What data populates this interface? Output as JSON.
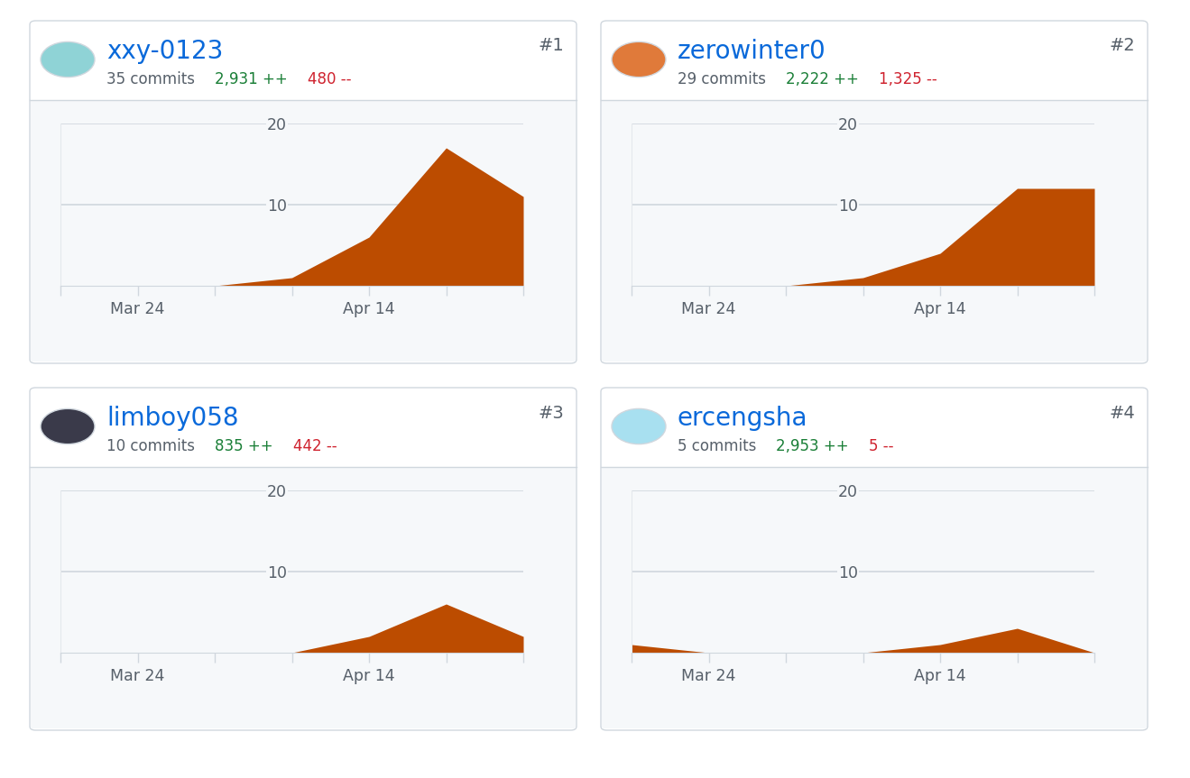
{
  "chart_data": [
    {
      "type": "area",
      "title": "xxy-0123",
      "annotations": [
        "35 commits",
        "2,931 ++",
        "480 --",
        "#1"
      ],
      "categories": [
        null,
        "Mar 24",
        null,
        null,
        "Apr 14",
        null,
        null
      ],
      "values": [
        0,
        0,
        0,
        1,
        6,
        17,
        11
      ],
      "color": "#bc4c00",
      "ylim": [
        0,
        20
      ],
      "yticks": [
        10,
        20
      ],
      "grid": true
    },
    {
      "type": "area",
      "title": "zerowinter0",
      "annotations": [
        "29 commits",
        "2,222 ++",
        "1,325 --",
        "#2"
      ],
      "categories": [
        null,
        "Mar 24",
        null,
        null,
        "Apr 14",
        null,
        null
      ],
      "values": [
        0,
        0,
        0,
        1,
        4,
        12,
        12
      ],
      "color": "#bc4c00",
      "ylim": [
        0,
        20
      ],
      "yticks": [
        10,
        20
      ],
      "grid": true
    },
    {
      "type": "area",
      "title": "limboy058",
      "annotations": [
        "10 commits",
        "835 ++",
        "442 --",
        "#3"
      ],
      "categories": [
        null,
        "Mar 24",
        null,
        null,
        "Apr 14",
        null,
        null
      ],
      "values": [
        0,
        0,
        0,
        0,
        2,
        6,
        2
      ],
      "color": "#bc4c00",
      "ylim": [
        0,
        20
      ],
      "yticks": [
        10,
        20
      ],
      "grid": true
    },
    {
      "type": "area",
      "title": "ercengsha",
      "annotations": [
        "5 commits",
        "2,953 ++",
        "5 --",
        "#4"
      ],
      "categories": [
        null,
        "Mar 24",
        null,
        null,
        "Apr 14",
        null,
        null
      ],
      "values": [
        1,
        0,
        0,
        0,
        1,
        3,
        0
      ],
      "color": "#bc4c00",
      "ylim": [
        0,
        20
      ],
      "yticks": [
        10,
        20
      ],
      "grid": true
    }
  ]
}
